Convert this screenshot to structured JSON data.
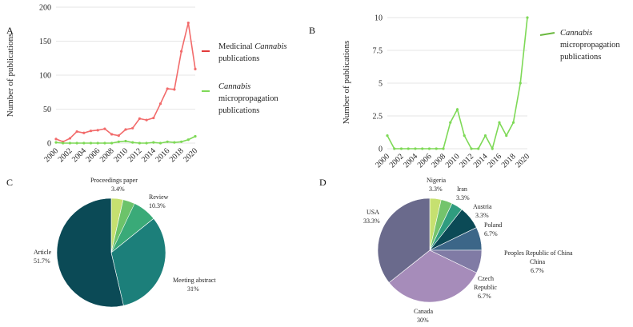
{
  "panels": {
    "a": "A",
    "b": "B",
    "c": "C",
    "d": "D"
  },
  "chart_data": [
    {
      "id": "A",
      "type": "line",
      "ylabel": "Number of publications",
      "ylim": [
        0,
        200
      ],
      "yticks": [
        0,
        50,
        100,
        150,
        200
      ],
      "x": [
        2000,
        2001,
        2002,
        2003,
        2004,
        2005,
        2006,
        2007,
        2008,
        2009,
        2010,
        2011,
        2012,
        2013,
        2014,
        2015,
        2016,
        2017,
        2018,
        2019,
        2020
      ],
      "xtick_labels": [
        "2000",
        "2002",
        "2004",
        "2006",
        "2008",
        "2010",
        "2012",
        "2014",
        "2016",
        "2018",
        "2020"
      ],
      "series": [
        {
          "name_parts": [
            "Medicinal ",
            "Cannabis",
            " publications"
          ],
          "color": "#f26b6b",
          "values": [
            6,
            2,
            7,
            17,
            15,
            18,
            19,
            21,
            13,
            11,
            20,
            22,
            36,
            34,
            37,
            58,
            80,
            79,
            135,
            177,
            109
          ]
        },
        {
          "name_parts": [
            "Cannabis",
            " micropropagation",
            " publications"
          ],
          "color": "#7ed957",
          "values": [
            1,
            0,
            0,
            0,
            0,
            0,
            0,
            0,
            0,
            2,
            3,
            1,
            0,
            0,
            1,
            0,
            2,
            1,
            2,
            5,
            10
          ]
        }
      ],
      "legend": "right"
    },
    {
      "id": "B",
      "type": "line",
      "ylabel": "Number of publications",
      "ylim": [
        0,
        10
      ],
      "yticks": [
        "0",
        "2.5",
        "5",
        "7.5",
        "10"
      ],
      "x": [
        2000,
        2001,
        2002,
        2003,
        2004,
        2005,
        2006,
        2007,
        2008,
        2009,
        2010,
        2011,
        2012,
        2013,
        2014,
        2015,
        2016,
        2017,
        2018,
        2019,
        2020
      ],
      "xtick_labels": [
        "2000",
        "2002",
        "2004",
        "2006",
        "2008",
        "2010",
        "2012",
        "2014",
        "2016",
        "2018",
        "2020"
      ],
      "series": [
        {
          "name_parts": [
            "Cannabis",
            " micropropagation",
            " publications"
          ],
          "color": "#7ed957",
          "values": [
            1,
            0,
            0,
            0,
            0,
            0,
            0,
            0,
            0,
            2,
            3,
            1,
            0,
            0,
            1,
            0,
            2,
            1,
            2,
            5,
            10
          ]
        }
      ],
      "legend": "right"
    },
    {
      "id": "C",
      "type": "pie",
      "slices": [
        {
          "label": "Proceedings paper",
          "pct": "3.4%",
          "value": 3.4,
          "color": "#c6e070"
        },
        {
          "label": "Review",
          "pct": "10.3%",
          "value": 10.3,
          "color": "#3aaa78",
          "sub_color": "#6cc36a"
        },
        {
          "label": "Meeting abstract",
          "pct": "31%",
          "value": 31,
          "color": "#1c7f7a"
        },
        {
          "label": "Article",
          "pct": "51.7%",
          "value": 51.7,
          "color": "#0b4a56"
        }
      ]
    },
    {
      "id": "D",
      "type": "pie",
      "slices": [
        {
          "label": "Nigeria",
          "pct": "3.3%",
          "value": 3.3,
          "color": "#c6e070"
        },
        {
          "label": "Iran",
          "pct": "3.3%",
          "value": 3.3,
          "color": "#74c46c"
        },
        {
          "label": "Austria",
          "pct": "3.3%",
          "value": 3.3,
          "color": "#2f9c7f"
        },
        {
          "label": "Poland",
          "pct": "6.7%",
          "value": 6.7,
          "color": "#0b4a56"
        },
        {
          "label": "Peoples Republic of China",
          "pct": "",
          "value": 0,
          "color": "#2a6174"
        },
        {
          "label": "China",
          "pct": "6.7%",
          "value": 6.7,
          "color": "#3c6688"
        },
        {
          "label": "Czech Republic",
          "pct": "6.7%",
          "value": 6.7,
          "color": "#807ba5"
        },
        {
          "label": "Canada",
          "pct": "30%",
          "value": 30,
          "color": "#a68cba"
        },
        {
          "label": "USA",
          "pct": "33.3%",
          "value": 33.3,
          "color": "#6a6a8c"
        }
      ]
    }
  ]
}
